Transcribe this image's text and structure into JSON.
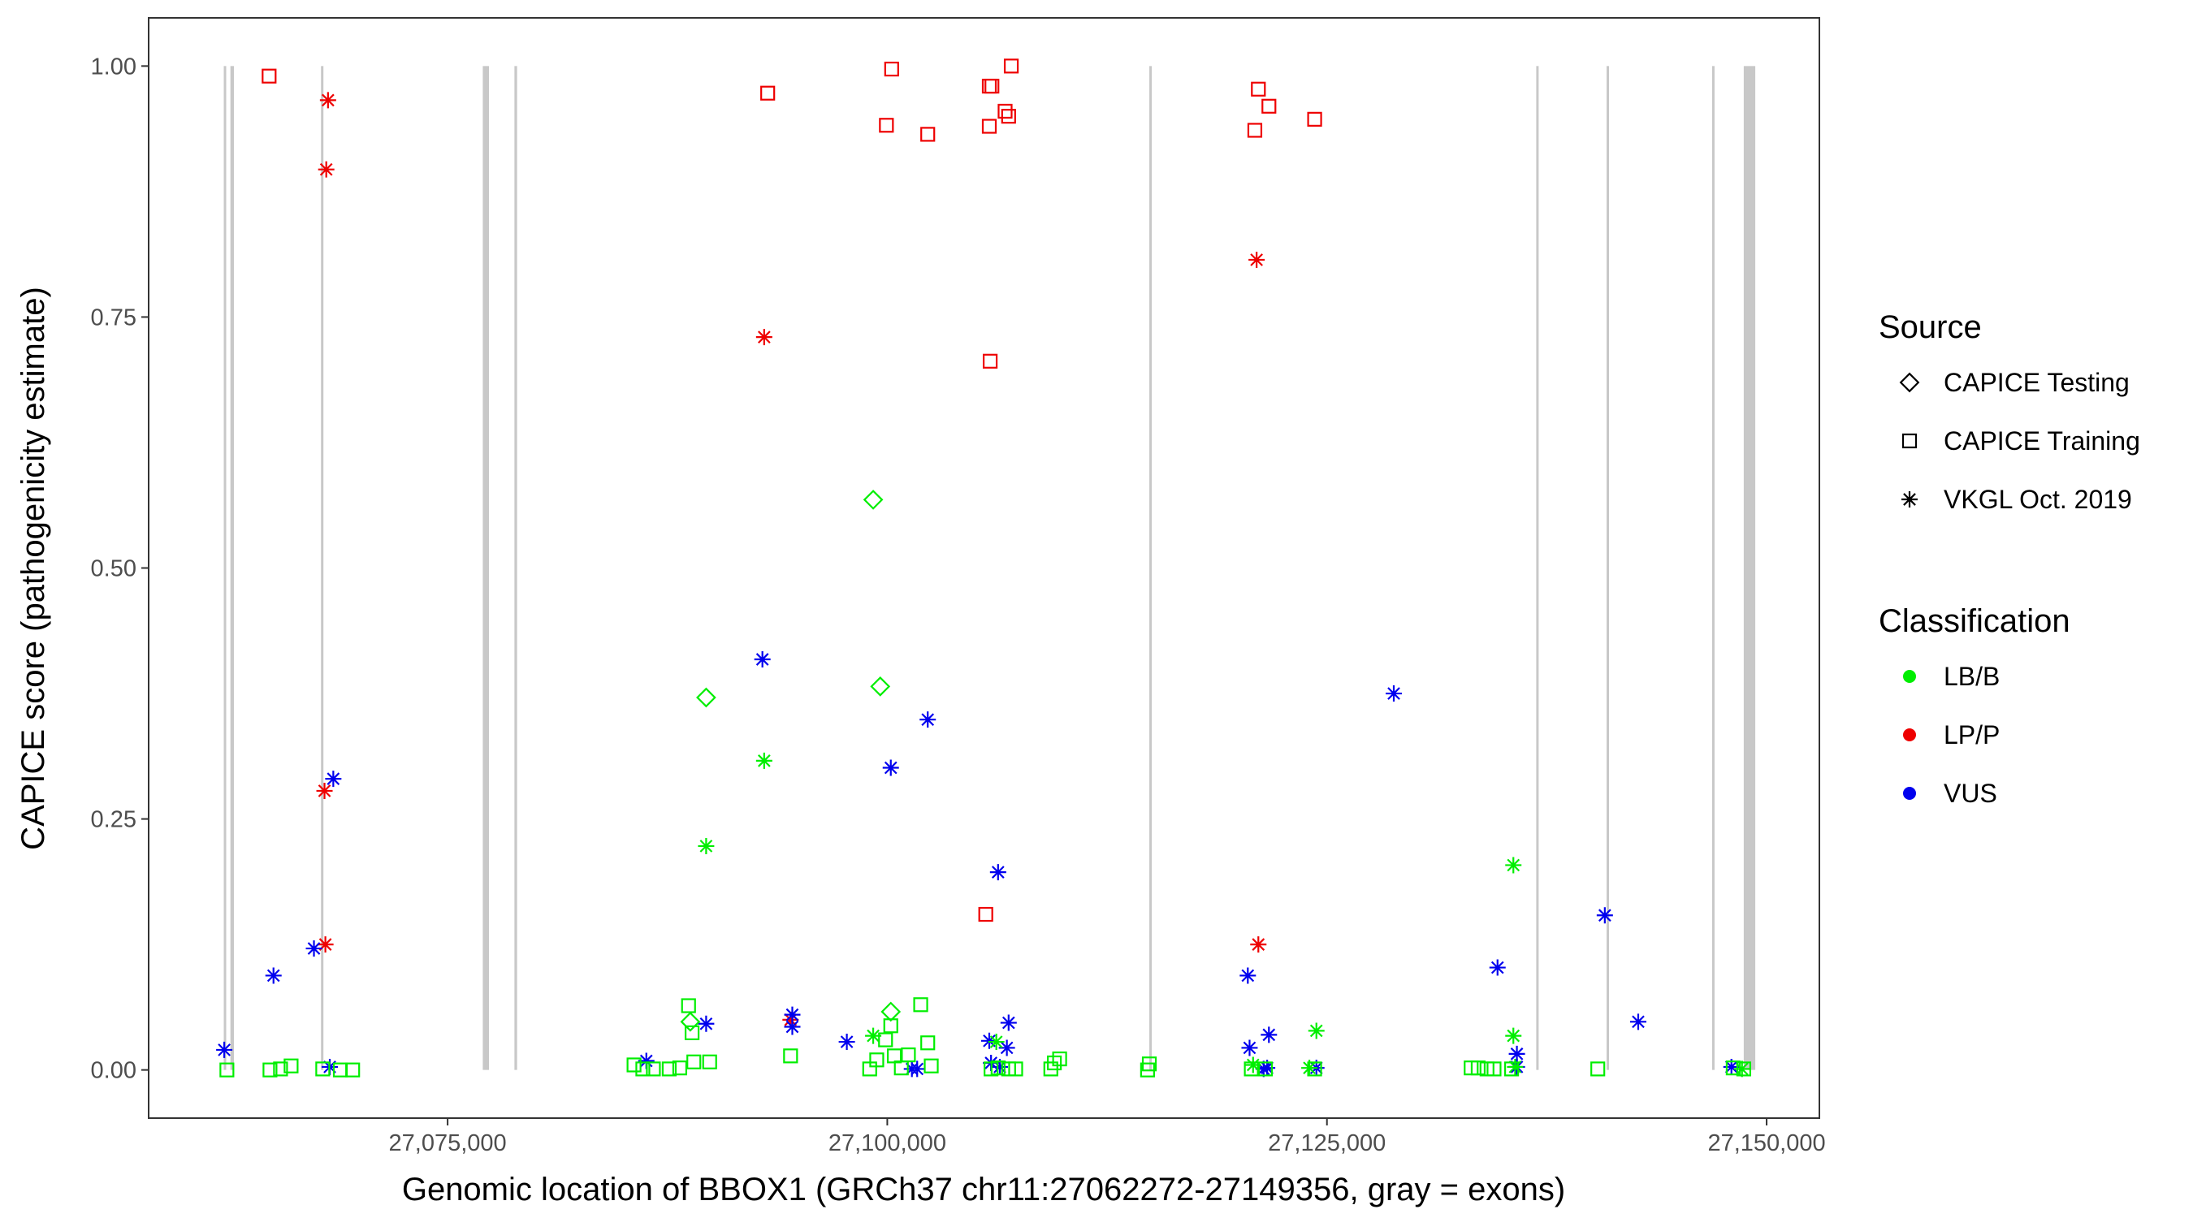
{
  "chart_data": {
    "type": "scatter",
    "title": "",
    "xlabel": "Genomic location of BBOX1 (GRCh37 chr11:27062272-27149356, gray = exons)",
    "ylabel": "CAPICE score (pathogenicity estimate)",
    "xlim": [
      27058000,
      27153000
    ],
    "ylim": [
      -0.048,
      1.048
    ],
    "x_ticks": [
      27075000,
      27100000,
      27125000,
      27150000
    ],
    "x_tick_labels": [
      "27,075,000",
      "27,100,000",
      "27,125,000",
      "27,150,000"
    ],
    "y_ticks": [
      0,
      0.25,
      0.5,
      0.75,
      1.0
    ],
    "y_tick_labels": [
      "0.00",
      "0.25",
      "0.50",
      "0.75",
      "1.00"
    ],
    "exon_color": "#c8c8c8",
    "exons": [
      [
        27062272,
        27062400
      ],
      [
        27062650,
        27062850
      ],
      [
        27067800,
        27067870
      ],
      [
        27077000,
        27077350
      ],
      [
        27078800,
        27078950
      ],
      [
        27114900,
        27115000
      ],
      [
        27136900,
        27137000
      ],
      [
        27140900,
        27141000
      ],
      [
        27146900,
        27147000
      ],
      [
        27148700,
        27149356
      ]
    ],
    "legend": {
      "source_title": "Source",
      "source_items": [
        {
          "label": "CAPICE Testing",
          "shape": "diamond"
        },
        {
          "label": "CAPICE Training",
          "shape": "square"
        },
        {
          "label": "VKGL Oct. 2019",
          "shape": "asterisk"
        }
      ],
      "classification_title": "Classification",
      "classification_items": [
        {
          "label": "LB/B",
          "color": "#00ee00"
        },
        {
          "label": "LP/P",
          "color": "#ee0000"
        },
        {
          "label": "VUS",
          "color": "#0000ee"
        }
      ]
    },
    "colors": {
      "LB/B": "#00ee00",
      "LP/P": "#ee0000",
      "VUS": "#0000ee"
    },
    "series": [
      {
        "name": "CAPICE Training / LP/P",
        "shape": "square",
        "class": "LP/P",
        "points": [
          [
            27064850,
            0.99
          ],
          [
            27093200,
            0.973
          ],
          [
            27100250,
            0.997
          ],
          [
            27099950,
            0.941
          ],
          [
            27102300,
            0.932
          ],
          [
            27105800,
            0.98
          ],
          [
            27105950,
            0.98
          ],
          [
            27105800,
            0.94
          ],
          [
            27106700,
            0.955
          ],
          [
            27106900,
            0.95
          ],
          [
            27107050,
            1.0
          ],
          [
            27105850,
            0.706
          ],
          [
            27105600,
            0.155
          ],
          [
            27121100,
            0.977
          ],
          [
            27121700,
            0.96
          ],
          [
            27120900,
            0.936
          ],
          [
            27124300,
            0.947
          ]
        ]
      },
      {
        "name": "VKGL Oct. 2019 / LP/P",
        "shape": "asterisk",
        "class": "LP/P",
        "points": [
          [
            27068200,
            0.966
          ],
          [
            27068100,
            0.897
          ],
          [
            27068000,
            0.278
          ],
          [
            27068050,
            0.125
          ],
          [
            27093000,
            0.73
          ],
          [
            27094500,
            0.05
          ],
          [
            27121000,
            0.807
          ],
          [
            27121100,
            0.125
          ]
        ]
      },
      {
        "name": "VKGL Oct. 2019 / VUS",
        "shape": "asterisk",
        "class": "VUS",
        "points": [
          [
            27062300,
            0.02
          ],
          [
            27065100,
            0.094
          ],
          [
            27067400,
            0.121
          ],
          [
            27068500,
            0.29
          ],
          [
            27068300,
            0.003
          ],
          [
            27086300,
            0.009
          ],
          [
            27089700,
            0.046
          ],
          [
            27092900,
            0.409
          ],
          [
            27094600,
            0.055
          ],
          [
            27094600,
            0.043
          ],
          [
            27097700,
            0.028
          ],
          [
            27100200,
            0.301
          ],
          [
            27102300,
            0.349
          ],
          [
            27101400,
            0.001
          ],
          [
            27101700,
            0.001
          ],
          [
            27105800,
            0.029
          ],
          [
            27105900,
            0.007
          ],
          [
            27106400,
            0.003
          ],
          [
            27106300,
            0.197
          ],
          [
            27106900,
            0.047
          ],
          [
            27106800,
            0.022
          ],
          [
            27120500,
            0.094
          ],
          [
            27120600,
            0.022
          ],
          [
            27121700,
            0.035
          ],
          [
            27121600,
            0.002
          ],
          [
            27121400,
            0.001
          ],
          [
            27124400,
            0.002
          ],
          [
            27128800,
            0.375
          ],
          [
            27134700,
            0.102
          ],
          [
            27135800,
            0.016
          ],
          [
            27135800,
            0.003
          ],
          [
            27140800,
            0.154
          ],
          [
            27142700,
            0.048
          ],
          [
            27148000,
            0.003
          ]
        ]
      },
      {
        "name": "VKGL Oct. 2019 / LB/B",
        "shape": "asterisk",
        "class": "LB/B",
        "points": [
          [
            27089700,
            0.223
          ],
          [
            27093000,
            0.308
          ],
          [
            27099200,
            0.034
          ],
          [
            27106200,
            0.028
          ],
          [
            27120800,
            0.005
          ],
          [
            27124400,
            0.039
          ],
          [
            27124000,
            0.002
          ],
          [
            27135600,
            0.204
          ],
          [
            27135600,
            0.034
          ],
          [
            27135700,
            0.003
          ],
          [
            27148600,
            0.001
          ]
        ]
      },
      {
        "name": "CAPICE Testing / LB/B",
        "shape": "diamond",
        "class": "LB/B",
        "points": [
          [
            27089700,
            0.371
          ],
          [
            27099200,
            0.568
          ],
          [
            27099600,
            0.382
          ],
          [
            27100200,
            0.058
          ],
          [
            27088800,
            0.048
          ]
        ]
      },
      {
        "name": "CAPICE Training / LB/B",
        "shape": "square",
        "class": "LB/B",
        "points": [
          [
            27062450,
            0.0
          ],
          [
            27064900,
            0.0
          ],
          [
            27065500,
            0.001
          ],
          [
            27066100,
            0.004
          ],
          [
            27067900,
            0.001
          ],
          [
            27068900,
            0.0
          ],
          [
            27069600,
            0.0
          ],
          [
            27085600,
            0.005
          ],
          [
            27086100,
            0.001
          ],
          [
            27086700,
            0.001
          ],
          [
            27087600,
            0.001
          ],
          [
            27088200,
            0.002
          ],
          [
            27088700,
            0.064
          ],
          [
            27088900,
            0.037
          ],
          [
            27089000,
            0.008
          ],
          [
            27089900,
            0.008
          ],
          [
            27094500,
            0.014
          ],
          [
            27099000,
            0.001
          ],
          [
            27099400,
            0.01
          ],
          [
            27099900,
            0.03
          ],
          [
            27100200,
            0.044
          ],
          [
            27100400,
            0.014
          ],
          [
            27100800,
            0.002
          ],
          [
            27101200,
            0.015
          ],
          [
            27101900,
            0.065
          ],
          [
            27102300,
            0.027
          ],
          [
            27102500,
            0.004
          ],
          [
            27105900,
            0.001
          ],
          [
            27106300,
            0.002
          ],
          [
            27106900,
            0.001
          ],
          [
            27107300,
            0.001
          ],
          [
            27109300,
            0.001
          ],
          [
            27109500,
            0.007
          ],
          [
            27109800,
            0.011
          ],
          [
            27114800,
            0.0
          ],
          [
            27114900,
            0.006
          ],
          [
            27120700,
            0.001
          ],
          [
            27121500,
            0.001
          ],
          [
            27124300,
            0.001
          ],
          [
            27133200,
            0.002
          ],
          [
            27133600,
            0.002
          ],
          [
            27134100,
            0.001
          ],
          [
            27134500,
            0.001
          ],
          [
            27135500,
            0.001
          ],
          [
            27140400,
            0.001
          ],
          [
            27148100,
            0.002
          ],
          [
            27148700,
            0.001
          ]
        ]
      }
    ]
  }
}
